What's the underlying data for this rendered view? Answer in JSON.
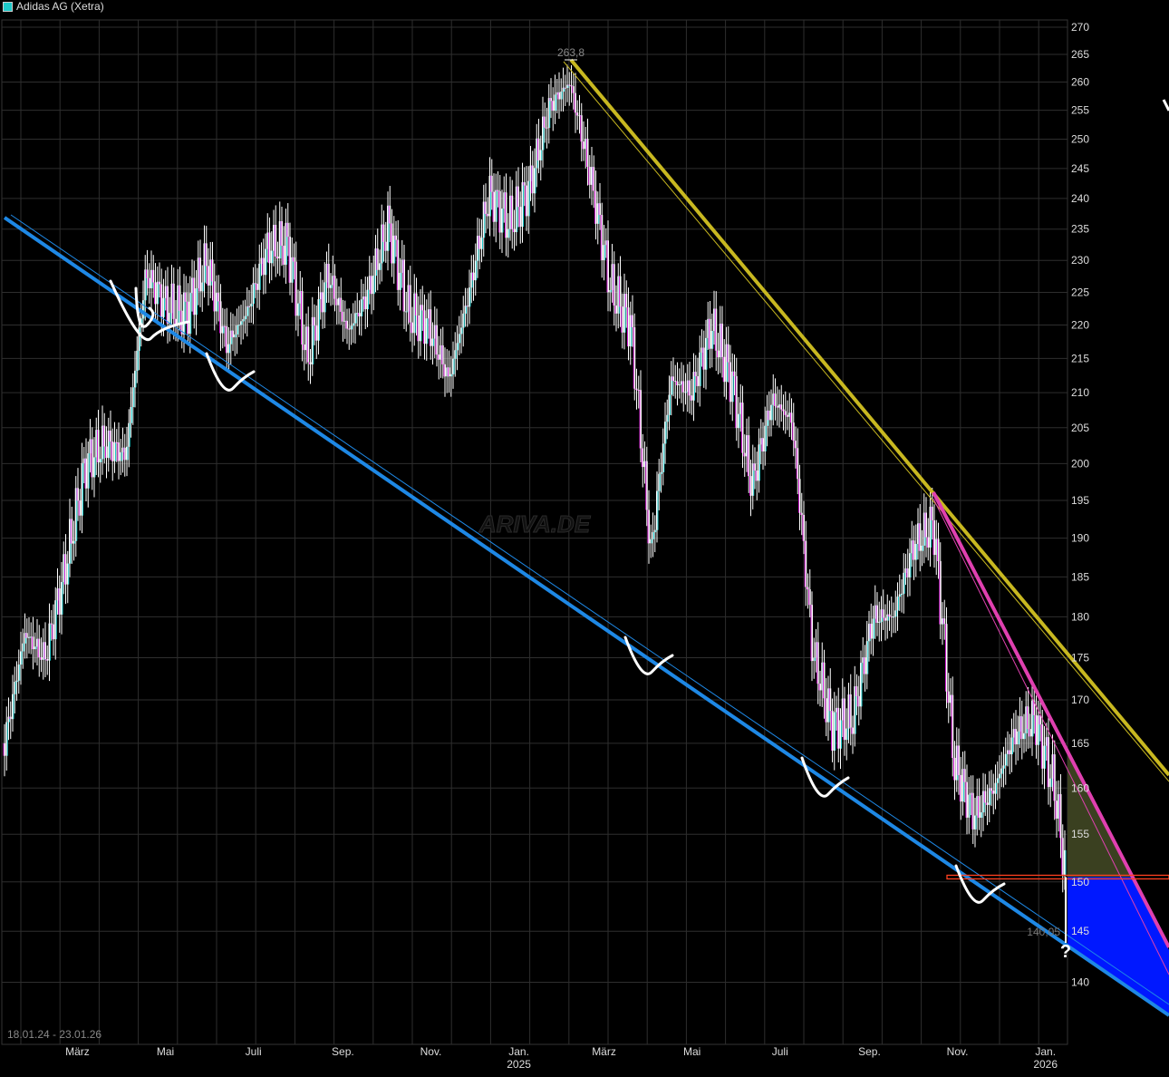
{
  "chart_data": {
    "type": "line",
    "title": "Adidas AG (Xetra)",
    "date_range_label": "18.01.24 - 23.01.26",
    "y_scale": "log",
    "ylim": [
      135,
      272
    ],
    "y_ticks": [
      270,
      265,
      260,
      255,
      250,
      245,
      240,
      235,
      230,
      225,
      220,
      215,
      210,
      205,
      200,
      195,
      190,
      185,
      180,
      175,
      170,
      165,
      160,
      155,
      150,
      145,
      140
    ],
    "x_ticks": [
      {
        "date": "2024-03-01",
        "label": "März",
        "sub": ""
      },
      {
        "date": "2024-05-01",
        "label": "Mai",
        "sub": ""
      },
      {
        "date": "2024-07-01",
        "label": "Juli",
        "sub": ""
      },
      {
        "date": "2024-09-01",
        "label": "Sep.",
        "sub": ""
      },
      {
        "date": "2024-11-01",
        "label": "Nov.",
        "sub": ""
      },
      {
        "date": "2025-01-01",
        "label": "Jan.",
        "sub": "2025"
      },
      {
        "date": "2025-03-01",
        "label": "März",
        "sub": ""
      },
      {
        "date": "2025-05-01",
        "label": "Mai",
        "sub": ""
      },
      {
        "date": "2025-07-01",
        "label": "Juli",
        "sub": ""
      },
      {
        "date": "2025-09-01",
        "label": "Sep.",
        "sub": ""
      },
      {
        "date": "2025-11-01",
        "label": "Nov.",
        "sub": ""
      },
      {
        "date": "2026-01-01",
        "label": "Jan.",
        "sub": "2026"
      }
    ],
    "grid": true,
    "series": [
      {
        "name": "Adidas AG (Xetra)",
        "color_up": "#1ec8c8",
        "color_down": "#d020d0",
        "points": [
          [
            "2024-01-18",
            165
          ],
          [
            "2024-02-01",
            178
          ],
          [
            "2024-02-15",
            175
          ],
          [
            "2024-02-29",
            186
          ],
          [
            "2024-03-14",
            200
          ],
          [
            "2024-03-28",
            203
          ],
          [
            "2024-04-11",
            201
          ],
          [
            "2024-04-25",
            228
          ],
          [
            "2024-05-09",
            223
          ],
          [
            "2024-05-23",
            222
          ],
          [
            "2024-06-06",
            230
          ],
          [
            "2024-06-20",
            217
          ],
          [
            "2024-07-04",
            222
          ],
          [
            "2024-07-18",
            232
          ],
          [
            "2024-08-01",
            233
          ],
          [
            "2024-08-15",
            215
          ],
          [
            "2024-08-29",
            228
          ],
          [
            "2024-09-12",
            219
          ],
          [
            "2024-09-26",
            225
          ],
          [
            "2024-10-10",
            236
          ],
          [
            "2024-10-24",
            222
          ],
          [
            "2024-11-07",
            220
          ],
          [
            "2024-11-21",
            212
          ],
          [
            "2024-12-05",
            225
          ],
          [
            "2024-12-19",
            241
          ],
          [
            "2025-01-02",
            236
          ],
          [
            "2025-01-16",
            242
          ],
          [
            "2025-01-30",
            256
          ],
          [
            "2025-02-13",
            260
          ],
          [
            "2025-02-27",
            244
          ],
          [
            "2025-03-13",
            226
          ],
          [
            "2025-03-27",
            220
          ],
          [
            "2025-04-10",
            188
          ],
          [
            "2025-04-24",
            212
          ],
          [
            "2025-05-08",
            210
          ],
          [
            "2025-05-22",
            220
          ],
          [
            "2025-06-05",
            212
          ],
          [
            "2025-06-19",
            197
          ],
          [
            "2025-07-03",
            209
          ],
          [
            "2025-07-17",
            206
          ],
          [
            "2025-07-31",
            176
          ],
          [
            "2025-08-14",
            167
          ],
          [
            "2025-08-28",
            168
          ],
          [
            "2025-09-11",
            180
          ],
          [
            "2025-09-25",
            180
          ],
          [
            "2025-10-09",
            189
          ],
          [
            "2025-10-23",
            192
          ],
          [
            "2025-11-06",
            163
          ],
          [
            "2025-11-20",
            157
          ],
          [
            "2025-12-04",
            160
          ],
          [
            "2025-12-18",
            166
          ],
          [
            "2026-01-01",
            168
          ],
          [
            "2026-01-15",
            160
          ],
          [
            "2026-01-23",
            150
          ]
        ]
      }
    ],
    "annotations": {
      "high_label": "263,8",
      "high_value": 263.8,
      "low_label": "140,05",
      "question_mark": "?",
      "horizontal_line_value": 150.5,
      "support_line_color": "#1e88e5",
      "resistance_line_color": "#c8b820",
      "pink_line_color": "#e040b0",
      "zone_upper_color": "#3a4020",
      "zone_lower_color": "#0018ff",
      "hline_color": "#ff4020"
    },
    "watermark": "ARIVA.DE"
  }
}
